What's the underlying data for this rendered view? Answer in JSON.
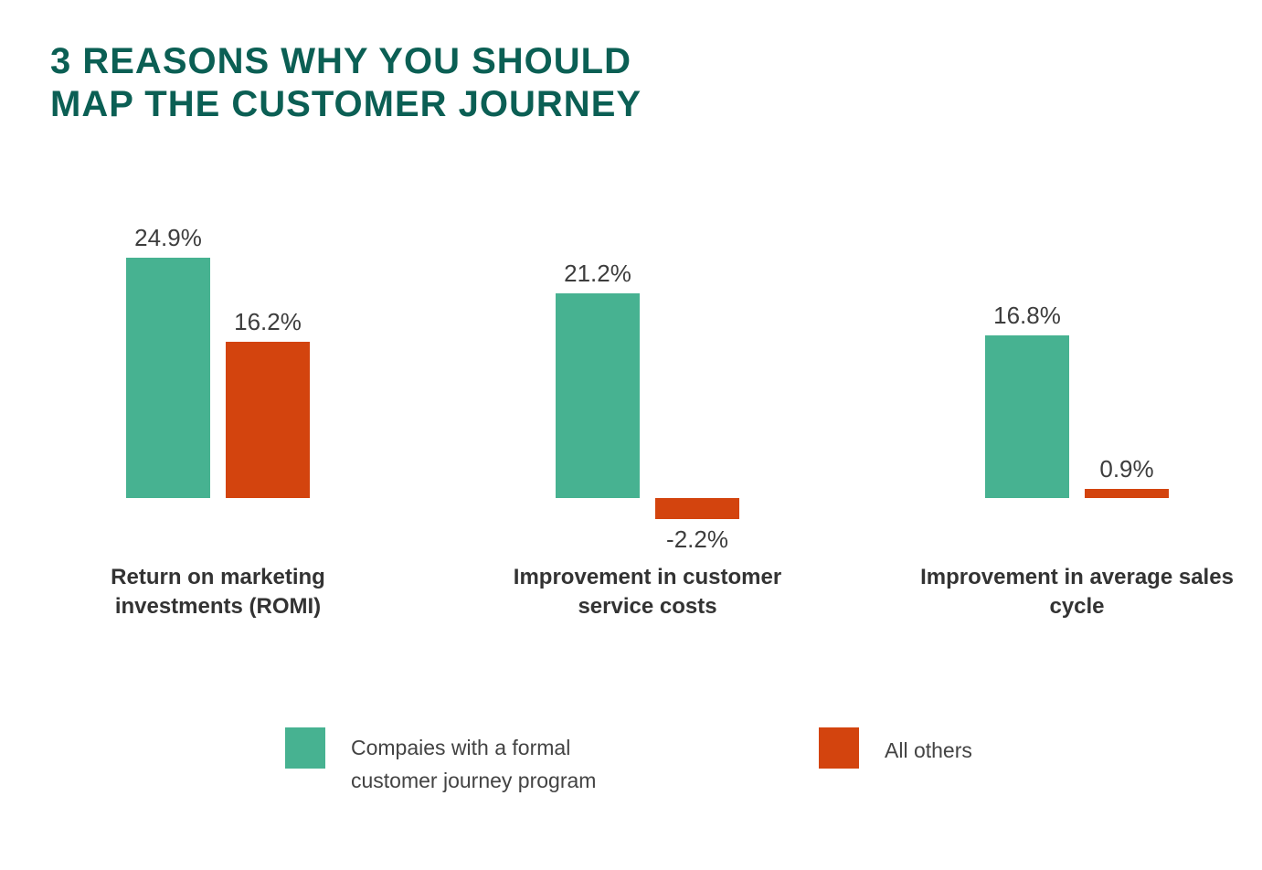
{
  "header": {
    "title_line1": "3 REASONS WHY YOU SHOULD",
    "title_line2": "MAP THE CUSTOMER JOURNEY"
  },
  "colors": {
    "title": "#0b5f54",
    "value_text": "#3d3d3d",
    "category_text": "#333333",
    "legend_text": "#434343",
    "background": "#ffffff"
  },
  "chart_data": {
    "type": "bar",
    "title": "3 REASONS WHY YOU SHOULD MAP THE CUSTOMER JOURNEY",
    "unit": "%",
    "grid": false,
    "axes_visible": false,
    "legend_position": "bottom",
    "categories": [
      "Return on marketing investments (ROMI)",
      "Improvement in customer service costs",
      "Improvement in average sales cycle"
    ],
    "series": [
      {
        "name": "Compaies with a formal customer journey program",
        "color": "#47b291",
        "values": [
          24.9,
          21.2,
          16.8
        ],
        "labels": [
          "24.9%",
          "21.2%",
          "16.8%"
        ]
      },
      {
        "name": "All others",
        "color": "#d3440e",
        "values": [
          16.2,
          -2.2,
          0.9
        ],
        "labels": [
          "16.2%",
          "-2.2%",
          "0.9%"
        ]
      }
    ]
  }
}
